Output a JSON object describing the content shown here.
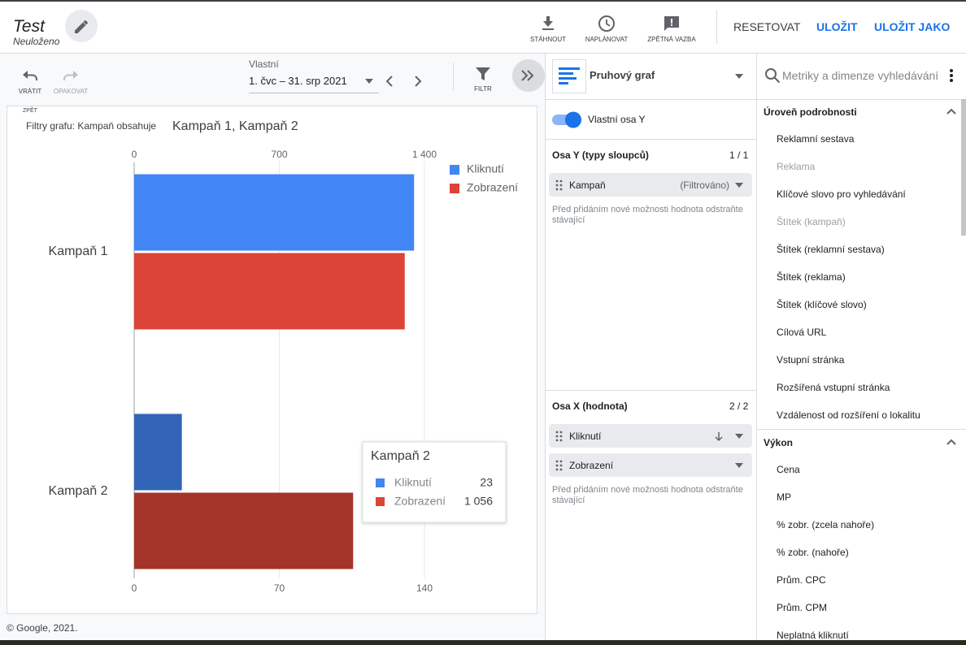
{
  "header": {
    "title": "Test",
    "subtitle": "Neuloženo",
    "actions": [
      "STÁHNOUT",
      "NAPLÁNOVAT",
      "ZPĚTNÁ VAZBA"
    ],
    "buttons": [
      "RESETOVAT",
      "ULOŽIT",
      "ULOŽIT JAKO"
    ]
  },
  "toolbar": {
    "undo": "VRÁTIT",
    "redo": "OPAKOVAT",
    "back": "ZPĚT",
    "date_label": "Vlastní",
    "date_range": "1. čvc – 31. srp 2021",
    "filter": "FILTR"
  },
  "chart_data": {
    "type": "bar",
    "orientation": "horizontal",
    "filter_label": "Filtry grafu: Kampaň obsahuje",
    "filter_value": "Kampaň 1, Kampaň 2",
    "categories": [
      "Kampaň 1",
      "Kampaň 2"
    ],
    "series": [
      {
        "name": "Kliknutí",
        "color": "#4285f4",
        "values": [
          135,
          23
        ]
      },
      {
        "name": "Zobrazení",
        "color": "#db4437",
        "axis": "x2",
        "values": [
          1305,
          1056
        ],
        "value_labels": [
          null,
          "1 056"
        ]
      }
    ],
    "xlim": [
      0,
      140
    ],
    "xticks": [
      0,
      70,
      140
    ],
    "x2lim": [
      0,
      1400
    ],
    "x2ticks": [
      0,
      700,
      {
        "value": 1400,
        "label": "1 400"
      }
    ],
    "grid": true,
    "legend": "top-right"
  },
  "footer": "© Google, 2021.",
  "setup_panel": {
    "chart_type": "Pruhový graf",
    "toggle": "Vlastní osa Y",
    "y_section": {
      "title": "Osa Y (typy sloupců)",
      "count": "1 / 1",
      "fields": [
        {
          "name": "Kampaň",
          "note": "(Filtrováno)"
        }
      ],
      "hint": "Před přidáním nové možnosti hodnota odstraňte stávající"
    },
    "x_section": {
      "title": "Osa X (hodnota)",
      "count": "2 / 2",
      "fields": [
        {
          "name": "Kliknutí"
        },
        {
          "name": "Zobrazení"
        }
      ],
      "hint": "Před přidáním nové možnosti hodnota odstraňte stávající"
    }
  },
  "fields_panel": {
    "search_placeholder": "Metriky a dimenze vyhledávání",
    "groups": [
      {
        "title": "Úroveň podrobnosti",
        "items": [
          {
            "label": "Reklamní sestava"
          },
          {
            "label": "Reklama",
            "disabled": true
          },
          {
            "label": "Klíčové slovo pro vyhledávání"
          },
          {
            "label": "Štítek (kampaň)",
            "disabled": true
          },
          {
            "label": "Štítek (reklamní sestava)"
          },
          {
            "label": "Štítek (reklama)"
          },
          {
            "label": "Štítek (klíčové slovo)"
          },
          {
            "label": "Cílová URL"
          },
          {
            "label": "Vstupní stránka"
          },
          {
            "label": "Rozšířená vstupní stránka"
          },
          {
            "label": "Vzdálenost od rozšíření o lokalitu"
          }
        ]
      },
      {
        "title": "Výkon",
        "items": [
          {
            "label": "Cena"
          },
          {
            "label": "MP"
          },
          {
            "label": "% zobr. (zcela nahoře)"
          },
          {
            "label": "% zobr. (nahoře)"
          },
          {
            "label": "Prům. CPC"
          },
          {
            "label": "Prům. CPM"
          },
          {
            "label": "Neplatná kliknutí"
          }
        ]
      }
    ]
  }
}
